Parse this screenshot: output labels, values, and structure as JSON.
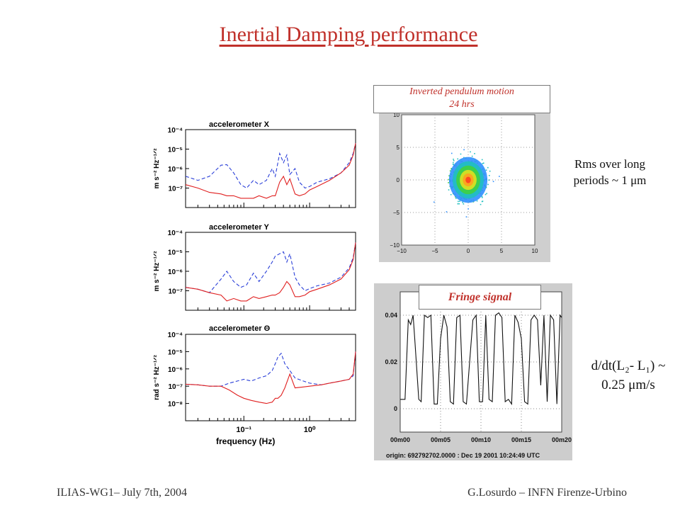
{
  "slide": {
    "title": "Inertial Damping performance",
    "footer_left": "ILIAS-WG1– July 7th, 2004",
    "footer_right": "G.Losurdo – INFN Firenze-Urbino",
    "rms_note_line1": "Rms over long",
    "rms_note_line2": "periods ~ 1 μm",
    "rate_note_line1": "d/dt(L₂- L₁) ~",
    "rate_note_line2": "0.25 μm/s",
    "ip_label_line1": "Inverted pendulum motion",
    "ip_label_line2": "24 hrs",
    "fringe_label": "Fringe signal"
  },
  "colors": {
    "title": "#c0302a",
    "series_open_loop": "#2a3fd8",
    "series_closed_loop": "#e02020"
  },
  "chart_data": [
    {
      "type": "line",
      "title": "accelerometer X",
      "xlabel": "",
      "ylabel": "m s⁻² Hz⁻¹ᐟ²",
      "x_scale": "log",
      "y_scale": "log",
      "xlim": [
        0.013,
        5.0
      ],
      "ylim": [
        1e-08,
        0.0001
      ],
      "ytick_labels": [
        "10⁻⁴",
        "10⁻⁵",
        "10⁻⁶",
        "10⁻⁷"
      ],
      "ytick_values": [
        0.0001,
        1e-05,
        1e-06,
        1e-07
      ],
      "series": [
        {
          "x": [
            0.013,
            0.02,
            0.03,
            0.045,
            0.055,
            0.07,
            0.09,
            0.11,
            0.14,
            0.17,
            0.22,
            0.27,
            0.3,
            0.35,
            0.4,
            0.45,
            0.5,
            0.6,
            0.7,
            0.85,
            1.0,
            1.3,
            2.0,
            3.0,
            4.0,
            4.6,
            5.0
          ],
          "y": [
            4e-07,
            2.5e-07,
            4e-07,
            1.5e-06,
            1.6e-06,
            6e-07,
            1.5e-07,
            1e-07,
            2.5e-07,
            1.5e-07,
            2.5e-07,
            1e-06,
            4e-07,
            6e-06,
            2e-06,
            5e-06,
            5e-07,
            1e-06,
            2e-07,
            1e-07,
            1.2e-07,
            2e-07,
            3e-07,
            6e-07,
            2e-06,
            6e-06,
            2e-05
          ]
        },
        {
          "x": [
            0.013,
            0.02,
            0.03,
            0.045,
            0.055,
            0.07,
            0.09,
            0.11,
            0.14,
            0.17,
            0.22,
            0.27,
            0.3,
            0.35,
            0.4,
            0.45,
            0.5,
            0.6,
            0.7,
            0.85,
            1.0,
            1.3,
            2.0,
            3.0,
            4.0,
            4.6,
            5.0
          ],
          "y": [
            1.5e-07,
            1e-07,
            6e-08,
            5e-08,
            4e-08,
            4e-08,
            3e-08,
            3e-08,
            3e-08,
            4e-08,
            3e-08,
            4e-08,
            4e-08,
            2e-07,
            4e-07,
            1.5e-07,
            3e-07,
            5e-08,
            4e-08,
            5e-08,
            8e-08,
            1.2e-07,
            2.5e-07,
            6e-07,
            1.5e-06,
            5e-06,
            2e-05
          ]
        }
      ]
    },
    {
      "type": "line",
      "title": "accelerometer Y",
      "xlabel": "",
      "ylabel": "m s⁻² Hz⁻¹ᐟ²",
      "x_scale": "log",
      "y_scale": "log",
      "xlim": [
        0.013,
        5.0
      ],
      "ylim": [
        1e-08,
        0.0001
      ],
      "ytick_labels": [
        "10⁻⁴",
        "10⁻⁵",
        "10⁻⁶",
        "10⁻⁷"
      ],
      "ytick_values": [
        0.0001,
        1e-05,
        1e-06,
        1e-07
      ],
      "series": [
        {
          "x": [
            0.013,
            0.02,
            0.03,
            0.045,
            0.055,
            0.07,
            0.09,
            0.11,
            0.14,
            0.17,
            0.22,
            0.27,
            0.3,
            0.35,
            0.4,
            0.45,
            0.5,
            0.6,
            0.7,
            0.85,
            1.0,
            1.3,
            2.0,
            3.0,
            4.0,
            4.6,
            5.0
          ],
          "y": [
            1.5e-07,
            1.2e-07,
            8e-08,
            4e-07,
            1e-06,
            3e-07,
            1.5e-07,
            2e-07,
            8e-07,
            3e-07,
            1e-06,
            3e-06,
            6e-06,
            8e-06,
            1e-05,
            3e-06,
            8e-06,
            5e-07,
            2e-07,
            1e-07,
            1.3e-07,
            1.8e-07,
            2.5e-07,
            5e-07,
            1.5e-06,
            5e-06,
            3e-05
          ]
        },
        {
          "x": [
            0.013,
            0.02,
            0.03,
            0.045,
            0.055,
            0.07,
            0.09,
            0.11,
            0.14,
            0.17,
            0.22,
            0.27,
            0.3,
            0.35,
            0.4,
            0.45,
            0.5,
            0.6,
            0.7,
            0.85,
            1.0,
            1.3,
            2.0,
            3.0,
            4.0,
            4.6,
            5.0
          ],
          "y": [
            1.5e-07,
            1.2e-07,
            8e-08,
            6e-08,
            3e-08,
            4e-08,
            3e-08,
            3e-08,
            5e-08,
            4e-08,
            5e-08,
            6e-08,
            6e-08,
            8e-08,
            1.5e-07,
            3e-07,
            2e-07,
            5e-08,
            5e-08,
            6e-08,
            9e-08,
            1.2e-07,
            2e-07,
            4e-07,
            1.2e-06,
            4e-06,
            3e-05
          ]
        }
      ]
    },
    {
      "type": "line",
      "title": "accelerometer Θ",
      "xlabel": "frequency (Hz)",
      "ylabel": "rad s⁻² Hz⁻¹ᐟ²",
      "x_scale": "log",
      "y_scale": "log",
      "xlim": [
        0.013,
        5.0
      ],
      "ylim": [
        1e-09,
        0.0001
      ],
      "ytick_labels": [
        "10⁻⁴",
        "10⁻⁵",
        "10⁻⁶",
        "10⁻⁷",
        "10⁻⁸"
      ],
      "ytick_values": [
        0.0001,
        1e-05,
        1e-06,
        1e-07,
        1e-08
      ],
      "xtick_labels": [
        "10⁻¹",
        "10⁰"
      ],
      "xtick_values": [
        0.1,
        1
      ],
      "series": [
        {
          "x": [
            0.013,
            0.02,
            0.03,
            0.045,
            0.06,
            0.08,
            0.1,
            0.13,
            0.17,
            0.22,
            0.27,
            0.3,
            0.33,
            0.37,
            0.42,
            0.5,
            0.6,
            0.8,
            1.0,
            1.5,
            2.0,
            3.0,
            4.0,
            4.6,
            5.0
          ],
          "y": [
            1.3e-07,
            1.2e-07,
            1e-07,
            1e-07,
            1.5e-07,
            2e-07,
            2.5e-07,
            2e-07,
            3e-07,
            4e-07,
            8e-07,
            2e-06,
            5e-06,
            8e-06,
            2e-06,
            8e-07,
            3e-07,
            2e-07,
            1.5e-07,
            1.2e-07,
            1.5e-07,
            2e-07,
            2.5e-07,
            4e-07,
            1e-05
          ]
        },
        {
          "x": [
            0.013,
            0.02,
            0.03,
            0.045,
            0.06,
            0.08,
            0.1,
            0.13,
            0.17,
            0.22,
            0.27,
            0.3,
            0.33,
            0.37,
            0.42,
            0.5,
            0.6,
            0.8,
            1.0,
            1.5,
            2.0,
            3.0,
            4.0,
            4.6,
            5.0
          ],
          "y": [
            1.3e-07,
            1.2e-07,
            1e-07,
            1e-07,
            6e-08,
            3e-08,
            2e-08,
            1.5e-08,
            1.2e-08,
            1e-08,
            1.2e-08,
            2e-08,
            2e-08,
            3e-08,
            8e-08,
            5e-07,
            8e-08,
            9e-08,
            1e-07,
            1.2e-07,
            1.5e-07,
            2e-07,
            2.5e-07,
            5e-07,
            1e-05
          ]
        }
      ]
    },
    {
      "type": "scatter",
      "title": "",
      "xlim": [
        -10,
        10
      ],
      "ylim": [
        -10,
        10
      ],
      "xtick_labels": [
        "−10",
        "−5",
        "0",
        "5",
        "10"
      ],
      "xtick_values": [
        -10,
        -5,
        0,
        5,
        10
      ],
      "ytick_labels": [
        "10",
        "5",
        "0",
        "−5",
        "−10"
      ],
      "ytick_values": [
        10,
        5,
        0,
        -5,
        -10
      ],
      "cluster_center": [
        0,
        0
      ],
      "cluster_sigma": [
        1.2,
        1.4
      ],
      "cluster_colors": [
        "#ff4020",
        "#ffa020",
        "#e0e020",
        "#40d040",
        "#20c0c0",
        "#3090ff"
      ],
      "grid": true
    },
    {
      "type": "line",
      "title": "",
      "xlim": [
        0,
        20
      ],
      "ylim": [
        -0.01,
        0.05
      ],
      "xtick_labels": [
        "00m00",
        "00m05",
        "00m10",
        "00m15",
        "00m20"
      ],
      "xtick_values": [
        0,
        5,
        10,
        15,
        20
      ],
      "ytick_labels": [
        "0.04",
        "0.02",
        "0"
      ],
      "ytick_values": [
        0.04,
        0.02,
        0
      ],
      "origin_text": "origin: 692792702.0000 : Dec 19 2001 10:24:49 UTC",
      "grid": true,
      "series": [
        {
          "x": [
            0,
            0.6,
            1.0,
            1.3,
            1.6,
            1.8,
            2.3,
            2.6,
            3.0,
            3.4,
            3.8,
            4.2,
            4.6,
            5.0,
            5.4,
            5.8,
            6.2,
            6.6,
            7.0,
            7.4,
            7.8,
            8.2,
            8.6,
            9.0,
            9.4,
            9.8,
            10.2,
            10.6,
            11.0,
            11.4,
            11.8,
            12.2,
            12.6,
            13.0,
            13.4,
            13.8,
            14.2,
            14.6,
            15.0,
            15.4,
            15.8,
            16.2,
            16.6,
            17.0,
            17.4,
            17.8,
            18.2,
            18.6,
            19.0,
            19.4,
            19.8,
            20.0
          ],
          "y": [
            0.004,
            0.004,
            0.038,
            0.036,
            0.04,
            0.03,
            0.004,
            0.003,
            0.04,
            0.039,
            0.04,
            0.002,
            0.002,
            0.03,
            0.04,
            0.035,
            0.003,
            0.002,
            0.039,
            0.04,
            0.003,
            0.002,
            0.02,
            0.038,
            0.04,
            0.003,
            0.003,
            0.04,
            0.004,
            0.003,
            0.04,
            0.041,
            0.039,
            0.003,
            0.004,
            0.002,
            0.04,
            0.037,
            0.03,
            0.003,
            0.002,
            0.038,
            0.04,
            0.038,
            0.01,
            0.04,
            0.003,
            0.04,
            0.038,
            0.002,
            0.04,
            0.039
          ]
        }
      ]
    }
  ]
}
